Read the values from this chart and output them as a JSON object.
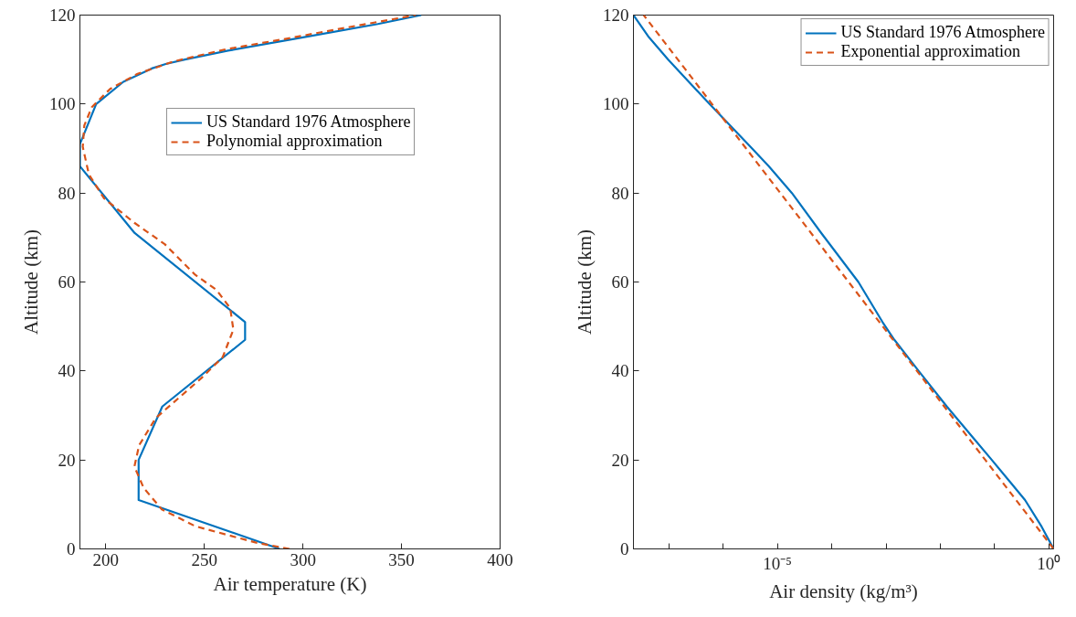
{
  "chart_data": [
    {
      "type": "line",
      "xlabel": "Air temperature (K)",
      "ylabel": "Altitude (km)",
      "xlim": [
        186.87,
        400
      ],
      "ylim": [
        0,
        120
      ],
      "xticks": [
        200,
        250,
        300,
        350,
        400
      ],
      "yticks": [
        0,
        20,
        40,
        60,
        80,
        100,
        120
      ],
      "grid": false,
      "legend": "right",
      "marker": "none",
      "series": [
        {
          "name": "US Standard 1976 Atmosphere",
          "color": "#0072bd",
          "line_style": "solid",
          "x": [
            288.15,
            216.65,
            216.65,
            228.65,
            270.65,
            270.65,
            214.65,
            186.87,
            186.87,
            195.1,
            208.9,
            223.3,
            230.4,
            240.1,
            262,
            300,
            338,
            360
          ],
          "values": [
            0,
            11,
            20,
            32,
            47,
            51,
            71,
            86,
            91,
            100,
            105,
            108,
            109,
            110,
            112,
            115,
            118,
            120
          ]
        },
        {
          "name": "Polynomial approximation",
          "color": "#d95319",
          "line_style": "dashed",
          "x": [
            293.2,
            276.3,
            245.4,
            228.4,
            219.2,
            214.5,
            216.9,
            225.3,
            237.7,
            248.5,
            259.3,
            264.7,
            263.1,
            256.2,
            245.4,
            229.9,
            214.5,
            199.1,
            191.4,
            188.3,
            189.1,
            192.9,
            202.2,
            216.1,
            234.6,
            260.8,
            291.7,
            321,
            357.3
          ],
          "values": [
            0,
            1.4,
            5.1,
            8.9,
            13.7,
            18.5,
            23.3,
            29.4,
            34.2,
            38.4,
            43.1,
            49.3,
            54.1,
            58.2,
            61.6,
            68.5,
            73.3,
            78.8,
            84.2,
            90.4,
            95.2,
            99.3,
            103.4,
            106.8,
            109.6,
            112.3,
            114.7,
            117.1,
            120
          ]
        }
      ]
    },
    {
      "type": "line",
      "xlabel": "Air density (kg/m³)",
      "ylabel": "Altitude (km)",
      "log": "x",
      "xlim": [
        2.222e-08,
        1.225
      ],
      "ylim": [
        0,
        120
      ],
      "xticks": [
        {
          "value": 1e-07,
          "label": null
        },
        {
          "value": 1e-06,
          "label": null
        },
        {
          "value": 1e-05,
          "label": "10⁻⁵"
        },
        {
          "value": 0.0001,
          "label": null
        },
        {
          "value": 0.001,
          "label": null
        },
        {
          "value": 0.01,
          "label": null
        },
        {
          "value": 0.1,
          "label": null
        },
        {
          "value": 1,
          "label": "10⁰"
        }
      ],
      "yticks": [
        0,
        20,
        40,
        60,
        80,
        100,
        120
      ],
      "grid": false,
      "legend": "top right",
      "marker": "none",
      "series": [
        {
          "name": "US Standard 1976 Atmosphere",
          "color": "#0072bd",
          "line_style": "solid",
          "x": [
            1.225,
            0.7364,
            0.3639,
            0.1948,
            0.08891,
            0.04008,
            0.01322,
            0.003996,
            0.001427,
            0.0008614,
            0.0003097,
            6.421e-05,
            1.846e-05,
            6.958e-06,
            3.416e-06,
            1.393e-06,
            5.604e-07,
            2.325e-07,
            9.708e-08,
            4.289e-08,
            2.222e-08
          ],
          "values": [
            0,
            5,
            11,
            15,
            20,
            25,
            32,
            40,
            47,
            51,
            60,
            71,
            80,
            86,
            90,
            95,
            100,
            105,
            110,
            115,
            120
          ]
        },
        {
          "name": "Exponential approximation",
          "color": "#d95319",
          "line_style": "dashed",
          "x": [
            1.225,
            0.2875,
            0.0675,
            0.01584,
            0.00372,
            0.000873,
            0.000205,
            4.81e-05,
            1.13e-05,
            2.65e-06,
            6.22e-07,
            1.46e-07,
            3.43e-08
          ],
          "values": [
            0,
            10,
            20,
            30,
            40,
            50,
            60,
            70,
            80,
            90,
            100,
            110,
            120
          ]
        }
      ]
    }
  ]
}
